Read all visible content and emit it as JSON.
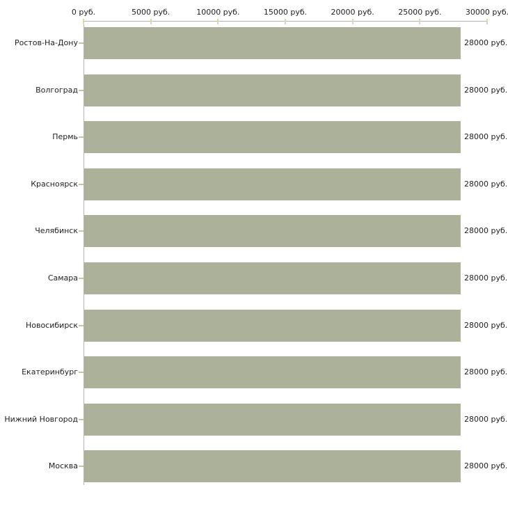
{
  "chart_data": {
    "type": "bar",
    "orientation": "horizontal",
    "title": "",
    "xlabel": "",
    "ylabel": "",
    "unit": "руб.",
    "categories": [
      "Ростов-На-Дону",
      "Волгоград",
      "Пермь",
      "Красноярск",
      "Челябинск",
      "Самара",
      "Новосибирск",
      "Екатеринбург",
      "Нижний Новгород",
      "Москва"
    ],
    "values": [
      28000,
      28000,
      28000,
      28000,
      28000,
      28000,
      28000,
      28000,
      28000,
      28000
    ],
    "value_labels": [
      "28000 руб.",
      "28000 руб.",
      "28000 руб.",
      "28000 руб.",
      "28000 руб.",
      "28000 руб.",
      "28000 руб.",
      "28000 руб.",
      "28000 руб.",
      "28000 руб."
    ],
    "x_ticks": [
      0,
      5000,
      10000,
      15000,
      20000,
      25000,
      30000
    ],
    "x_tick_labels": [
      "0 руб.",
      "5000 руб.",
      "10000 руб.",
      "15000 руб.",
      "20000 руб.",
      "25000 руб.",
      "30000 руб."
    ],
    "xlim": [
      0,
      30000
    ],
    "grid": false,
    "legend": false,
    "colors": {
      "bar": "#acb199",
      "axis_line": "#b3b3b3",
      "axis_tick": "#d5d7b6",
      "category_tick": "#c3c6a2",
      "text": "#1f1f1f",
      "background": "#ffffff"
    }
  }
}
